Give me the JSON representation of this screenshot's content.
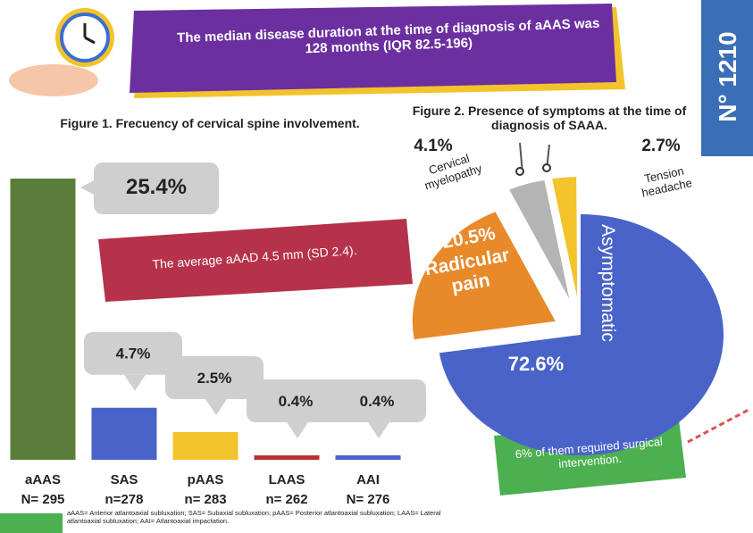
{
  "badge": "N° 1210",
  "banner": "The median disease duration at the time of diagnosis of aAAS was 128 months (IQR 82.5-196)",
  "footnote": "aAAS= Anterior atlantoaxial subluxation; SAS= Subaxial subluxation; pAAS= Posterior atlantoaxial subluxation; LAAS= Lateral atlantoaxial subluxation; AAI= Atlantoaxial impactation.",
  "chart_data": [
    {
      "type": "bar",
      "title": "Figure 1. Frecuency of cervical spine involvement.",
      "categories": [
        "aAAS",
        "SAS",
        "pAAS",
        "LAAS",
        "AAI"
      ],
      "counts": [
        "N= 295",
        "n=278",
        "n= 283",
        "n= 262",
        "N= 276"
      ],
      "values": [
        25.4,
        4.7,
        2.5,
        0.4,
        0.4
      ],
      "value_labels": [
        "25.4%",
        "4.7%",
        "2.5%",
        "0.4%",
        "0.4%"
      ],
      "colors": [
        "#5b7d3a",
        "#4a63c8",
        "#f2c32b",
        "#b8312f",
        "#4a63c8"
      ],
      "annotation": "The average aAAD 4.5 mm (SD 2.4)."
    },
    {
      "type": "pie",
      "title": "Figure 2. Presence of symptoms at the time of diagnosis of SAAA.",
      "categories": [
        "Asymptomatic",
        "Radicular pain",
        "Cervical myelopathy",
        "Tension headache"
      ],
      "values": [
        72.6,
        20.5,
        4.1,
        2.7
      ],
      "value_labels": [
        "72.6%",
        "20.5%",
        "4.1%",
        "2.7%"
      ],
      "colors": [
        "#4a63c8",
        "#e8892a",
        "#b4b4b4",
        "#f2c32b"
      ],
      "annotation": "6% of them required surgical intervention."
    }
  ]
}
